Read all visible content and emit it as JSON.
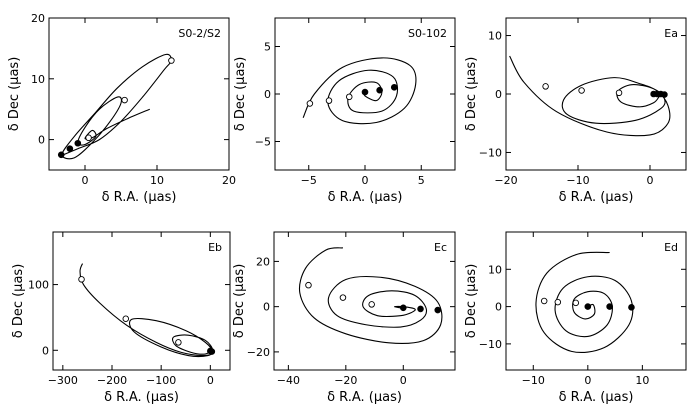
{
  "figure": {
    "xlabel": "δ R.A. (μas)",
    "ylabel": "δ Dec (μas)"
  },
  "chart_data": [
    {
      "type": "line",
      "title": "S0-2/S2",
      "xlim": [
        -5,
        20
      ],
      "ylim": [
        -5,
        20
      ],
      "xticks": [
        0,
        10,
        20
      ],
      "yticks": [
        0,
        10,
        20
      ],
      "series": [
        {
          "name": "orbit",
          "points": [
            [
              -3,
              -2.5
            ],
            [
              -1,
              -1.5
            ],
            [
              2,
              0
            ],
            [
              5,
              3
            ],
            [
              8,
              7
            ],
            [
              11,
              11.5
            ],
            [
              12,
              13
            ],
            [
              11.2,
              14
            ],
            [
              8,
              12
            ],
            [
              4.5,
              8.5
            ],
            [
              1.5,
              4.5
            ],
            [
              -1.5,
              0.5
            ],
            [
              -3.2,
              -2.5
            ],
            [
              -1.5,
              -3
            ],
            [
              1,
              -0.5
            ],
            [
              3.5,
              3
            ],
            [
              5,
              6
            ],
            [
              4.5,
              7
            ],
            [
              2,
              5
            ],
            [
              0,
              2
            ],
            [
              -1,
              -0.5
            ],
            [
              0,
              -0.8
            ],
            [
              1.5,
              0.5
            ],
            [
              1,
              1.5
            ],
            [
              0,
              0.2
            ],
            [
              1,
              0.3
            ],
            [
              3,
              1.8
            ],
            [
              6,
              3.5
            ],
            [
              9,
              5
            ]
          ]
        }
      ],
      "open_points": [
        [
          12,
          13
        ],
        [
          5.5,
          6.5
        ],
        [
          0.5,
          0.3
        ]
      ],
      "filled_points": [
        [
          -3.3,
          -2.5
        ],
        [
          -2.1,
          -1.5
        ],
        [
          -1,
          -0.6
        ]
      ]
    },
    {
      "type": "line",
      "title": "S0-102",
      "xlim": [
        -8,
        8
      ],
      "ylim": [
        -8,
        8
      ],
      "xticks": [
        -5,
        0,
        5
      ],
      "yticks": [
        -5,
        0,
        5
      ],
      "series": [
        {
          "name": "orbit",
          "points": [
            [
              -5.5,
              -2.5
            ],
            [
              -4.5,
              0
            ],
            [
              -2,
              2.8
            ],
            [
              1.5,
              3.8
            ],
            [
              4,
              3
            ],
            [
              4.5,
              1
            ],
            [
              3.5,
              -1.5
            ],
            [
              1,
              -3
            ],
            [
              -2,
              -2.8
            ],
            [
              -3.3,
              -0.9
            ],
            [
              -2.3,
              1.4
            ],
            [
              0.3,
              2.5
            ],
            [
              2.5,
              1.8
            ],
            [
              2.8,
              -0.2
            ],
            [
              1.5,
              -1.8
            ],
            [
              -1,
              -1.8
            ],
            [
              -1.5,
              -0.4
            ],
            [
              -0.5,
              1
            ],
            [
              1,
              1.2
            ],
            [
              1.5,
              0.2
            ],
            [
              1,
              -0.7
            ],
            [
              0,
              -0.2
            ],
            [
              0,
              0.2
            ]
          ]
        }
      ],
      "open_points": [
        [
          -4.9,
          -1
        ],
        [
          -3.2,
          -0.7
        ],
        [
          -1.4,
          -0.3
        ]
      ],
      "filled_points": [
        [
          0,
          0.2
        ],
        [
          1.3,
          0.4
        ],
        [
          2.6,
          0.7
        ]
      ]
    },
    {
      "type": "line",
      "title": "Ea",
      "xlim": [
        -20,
        5
      ],
      "ylim": [
        -13,
        13
      ],
      "xticks": [
        -20,
        -10,
        0
      ],
      "yticks": [
        -10,
        0,
        10
      ],
      "series": [
        {
          "name": "orbit",
          "points": [
            [
              -19.5,
              6.5
            ],
            [
              -17.5,
              2
            ],
            [
              -13,
              -3
            ],
            [
              -6,
              -6.5
            ],
            [
              0,
              -7
            ],
            [
              2.5,
              -5
            ],
            [
              2.5,
              -2
            ],
            [
              1,
              0.5
            ],
            [
              -1.5,
              1.8
            ],
            [
              -5,
              2.8
            ],
            [
              -9.5,
              1.5
            ],
            [
              -12,
              -1
            ],
            [
              -11.5,
              -3.5
            ],
            [
              -7.5,
              -5
            ],
            [
              -2,
              -4.5
            ],
            [
              1.5,
              -2.5
            ],
            [
              2,
              -0.8
            ],
            [
              0.5,
              0.9
            ],
            [
              -2.5,
              1.6
            ],
            [
              -4.5,
              0.4
            ],
            [
              -4,
              -1.4
            ],
            [
              -1.5,
              -2.2
            ],
            [
              0.5,
              -1.5
            ],
            [
              1.3,
              -0.4
            ],
            [
              1.6,
              0
            ]
          ]
        }
      ],
      "open_points": [
        [
          -14.5,
          1.3
        ],
        [
          -9.5,
          0.6
        ],
        [
          -4.3,
          0.2
        ]
      ],
      "filled_points": [
        [
          0.5,
          0
        ],
        [
          1,
          0
        ],
        [
          1.5,
          0
        ],
        [
          2,
          -0.1
        ]
      ]
    },
    {
      "type": "line",
      "title": "Eb",
      "xlim": [
        -320,
        40
      ],
      "ylim": [
        -30,
        180
      ],
      "xticks": [
        -300,
        -200,
        -100,
        0
      ],
      "yticks": [
        0,
        100
      ],
      "series": [
        {
          "name": "orbit",
          "points": [
            [
              -260,
              132
            ],
            [
              -265,
              120
            ],
            [
              -258,
              100
            ],
            [
              -225,
              72
            ],
            [
              -170,
              38
            ],
            [
              -110,
              12
            ],
            [
              -60,
              -3
            ],
            [
              -15,
              -8
            ],
            [
              5,
              -3
            ],
            [
              -10,
              12
            ],
            [
              -50,
              30
            ],
            [
              -110,
              45
            ],
            [
              -160,
              47
            ],
            [
              -155,
              28
            ],
            [
              -100,
              5
            ],
            [
              -45,
              -8
            ],
            [
              -5,
              -8
            ],
            [
              5,
              0
            ],
            [
              -10,
              15
            ],
            [
              -45,
              23
            ],
            [
              -75,
              20
            ],
            [
              -70,
              7
            ],
            [
              -40,
              -3
            ],
            [
              -15,
              -6
            ],
            [
              0,
              -3
            ],
            [
              5,
              -1
            ]
          ]
        }
      ],
      "open_points": [
        [
          -262,
          108
        ],
        [
          -172,
          48
        ],
        [
          -65,
          12
        ]
      ],
      "filled_points": [
        [
          0,
          -1
        ],
        [
          3,
          -2
        ]
      ]
    },
    {
      "type": "line",
      "title": "Ec",
      "xlim": [
        -45,
        18
      ],
      "ylim": [
        -28,
        33
      ],
      "xticks": [
        -40,
        -20,
        0
      ],
      "yticks": [
        -20,
        0,
        20
      ],
      "series": [
        {
          "name": "orbit",
          "points": [
            [
              -21,
              26
            ],
            [
              -27,
              25
            ],
            [
              -34,
              17
            ],
            [
              -36,
              6
            ],
            [
              -31,
              -5
            ],
            [
              -20,
              -12
            ],
            [
              -5,
              -16
            ],
            [
              7,
              -15
            ],
            [
              13,
              -8
            ],
            [
              12,
              2
            ],
            [
              4,
              9
            ],
            [
              -8,
              13
            ],
            [
              -20,
              12
            ],
            [
              -26,
              4
            ],
            [
              -23,
              -4
            ],
            [
              -13,
              -8
            ],
            [
              -1,
              -9
            ],
            [
              6,
              -6
            ],
            [
              8,
              -1
            ],
            [
              4,
              5
            ],
            [
              -4,
              7
            ],
            [
              -12,
              5
            ],
            [
              -14,
              0
            ],
            [
              -9,
              -4
            ],
            [
              -1,
              -4
            ],
            [
              3,
              -2.5
            ],
            [
              4,
              -1
            ],
            [
              0,
              0
            ],
            [
              -3,
              0
            ],
            [
              -1,
              -0.5
            ],
            [
              0,
              -0.5
            ]
          ]
        }
      ],
      "open_points": [
        [
          -33,
          9.5
        ],
        [
          -21,
          4
        ],
        [
          -11,
          1
        ]
      ],
      "filled_points": [
        [
          0,
          -0.5
        ],
        [
          6,
          -1
        ],
        [
          12,
          -1.5
        ]
      ]
    },
    {
      "type": "line",
      "title": "Ed",
      "xlim": [
        -15,
        18
      ],
      "ylim": [
        -17,
        20
      ],
      "xticks": [
        -10,
        0,
        10
      ],
      "yticks": [
        -10,
        0,
        10
      ],
      "series": [
        {
          "name": "orbit",
          "points": [
            [
              4,
              14.5
            ],
            [
              -2,
              14
            ],
            [
              -7.5,
              9
            ],
            [
              -9.5,
              1
            ],
            [
              -8,
              -7
            ],
            [
              -3,
              -12
            ],
            [
              3,
              -11
            ],
            [
              7.5,
              -5
            ],
            [
              8,
              1.5
            ],
            [
              5,
              7
            ],
            [
              0,
              8
            ],
            [
              -4.5,
              5
            ],
            [
              -6,
              -1
            ],
            [
              -4,
              -6.5
            ],
            [
              0,
              -8
            ],
            [
              3.5,
              -5
            ],
            [
              4.5,
              0
            ],
            [
              3,
              3.5
            ],
            [
              0,
              4
            ],
            [
              -2.5,
              2
            ],
            [
              -2.5,
              -1.5
            ],
            [
              -0.5,
              -3.3
            ],
            [
              1.2,
              -2
            ],
            [
              1,
              0.5
            ],
            [
              0,
              0
            ]
          ]
        }
      ],
      "open_points": [
        [
          -8,
          1.5
        ],
        [
          -5.5,
          1.2
        ],
        [
          -2.2,
          1
        ]
      ],
      "filled_points": [
        [
          0,
          0
        ],
        [
          4,
          0
        ],
        [
          8,
          -0.2
        ]
      ]
    }
  ]
}
